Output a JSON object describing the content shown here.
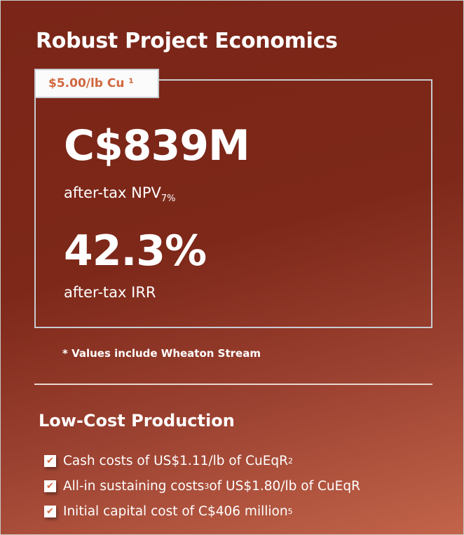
{
  "title": "Robust Project Economics",
  "price_tag": "$5.00/lb Cu ¹",
  "npv": {
    "value": "C$839M",
    "label": "after-tax NPV",
    "subscript": "7%"
  },
  "irr": {
    "value": "42.3%",
    "label": "after-tax IRR"
  },
  "note": "* Values include Wheaton Stream",
  "production": {
    "heading": "Low-Cost Production",
    "items": [
      {
        "text": "Cash costs of US$1.11/lb of CuEqR",
        "sup": "2",
        "rest": ""
      },
      {
        "text": "All-in sustaining costs",
        "sup": "3",
        "rest": " of US$1.80/lb of CuEqR"
      },
      {
        "text": "Initial capital cost of C$406 million",
        "sup": "5",
        "rest": ""
      }
    ]
  },
  "colors": {
    "background": "#7a2517",
    "accent": "#d1673f"
  },
  "icons": {
    "check": "checkbox-checked-icon"
  }
}
